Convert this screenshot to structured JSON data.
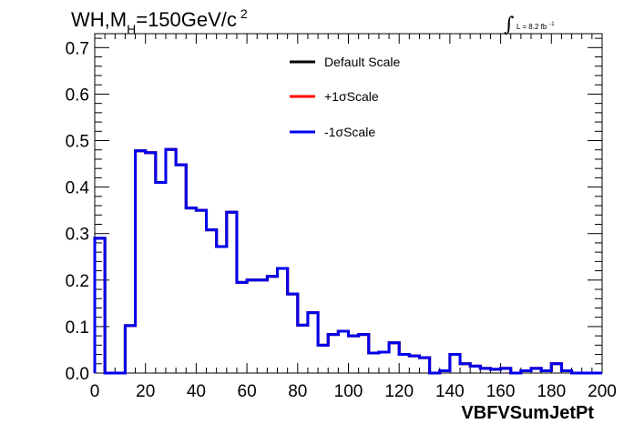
{
  "title": {
    "main": "WH,M",
    "sub": "H",
    "rest": "=150GeV/c",
    "sup": "2"
  },
  "lumi": {
    "integral": "∫",
    "text": "L = 8.2 fb",
    "sup": "-1"
  },
  "chart_data": {
    "type": "line",
    "xlabel": "VBFVSumJetPt",
    "ylabel": "",
    "xlim": [
      0,
      200
    ],
    "ylim": [
      0,
      0.73
    ],
    "x_ticks": [
      0,
      20,
      40,
      60,
      80,
      100,
      120,
      140,
      160,
      180,
      200
    ],
    "y_ticks": [
      0.0,
      0.1,
      0.2,
      0.3,
      0.4,
      0.5,
      0.6,
      0.7
    ],
    "x_tick_labels": [
      "0",
      "20",
      "40",
      "60",
      "80",
      "100",
      "120",
      "140",
      "160",
      "180",
      "200"
    ],
    "y_tick_labels": [
      "0.0",
      "0.1",
      "0.2",
      "0.3",
      "0.4",
      "0.5",
      "0.6",
      "0.7"
    ],
    "grid": false,
    "legend_position": "top-right",
    "bin_edges": [
      0,
      4,
      8,
      12,
      16,
      20,
      24,
      28,
      32,
      36,
      40,
      44,
      48,
      52,
      56,
      60,
      64,
      68,
      72,
      76,
      80,
      84,
      88,
      92,
      96,
      100,
      104,
      108,
      112,
      116,
      120,
      124,
      128,
      132,
      136,
      140,
      144,
      148,
      152,
      156,
      160,
      164,
      168,
      172,
      176,
      180,
      184,
      188,
      192,
      196,
      200
    ],
    "series": [
      {
        "name": "Default Scale",
        "color": "#000000",
        "values": [
          0.29,
          0.0,
          0.0,
          0.102,
          0.478,
          0.474,
          0.41,
          0.481,
          0.448,
          0.355,
          0.35,
          0.308,
          0.272,
          0.346,
          0.195,
          0.2,
          0.2,
          0.208,
          0.225,
          0.17,
          0.103,
          0.13,
          0.06,
          0.083,
          0.09,
          0.08,
          0.083,
          0.043,
          0.045,
          0.065,
          0.04,
          0.037,
          0.033,
          0.0,
          0.005,
          0.04,
          0.02,
          0.015,
          0.01,
          0.008,
          0.01,
          0.0,
          0.005,
          0.01,
          0.005,
          0.02,
          0.005,
          0.0,
          0.0,
          0.0
        ]
      },
      {
        "name": "+1σScale",
        "color": "#ff0000",
        "values": [
          0.29,
          0.0,
          0.0,
          0.102,
          0.478,
          0.474,
          0.41,
          0.481,
          0.448,
          0.355,
          0.35,
          0.308,
          0.272,
          0.346,
          0.195,
          0.2,
          0.2,
          0.208,
          0.225,
          0.17,
          0.103,
          0.13,
          0.06,
          0.083,
          0.09,
          0.08,
          0.083,
          0.043,
          0.045,
          0.065,
          0.04,
          0.037,
          0.033,
          0.0,
          0.005,
          0.04,
          0.02,
          0.015,
          0.01,
          0.008,
          0.01,
          0.0,
          0.005,
          0.01,
          0.005,
          0.02,
          0.005,
          0.0,
          0.0,
          0.0
        ]
      },
      {
        "name": "-1σScale",
        "color": "#0000ee",
        "values": [
          0.29,
          0.0,
          0.0,
          0.102,
          0.478,
          0.474,
          0.41,
          0.481,
          0.448,
          0.355,
          0.35,
          0.308,
          0.272,
          0.346,
          0.195,
          0.2,
          0.2,
          0.208,
          0.225,
          0.17,
          0.103,
          0.13,
          0.06,
          0.083,
          0.09,
          0.08,
          0.083,
          0.043,
          0.045,
          0.065,
          0.04,
          0.037,
          0.033,
          0.0,
          0.005,
          0.04,
          0.02,
          0.015,
          0.01,
          0.008,
          0.01,
          0.0,
          0.005,
          0.01,
          0.005,
          0.02,
          0.005,
          0.0,
          0.0,
          0.0
        ]
      }
    ]
  }
}
